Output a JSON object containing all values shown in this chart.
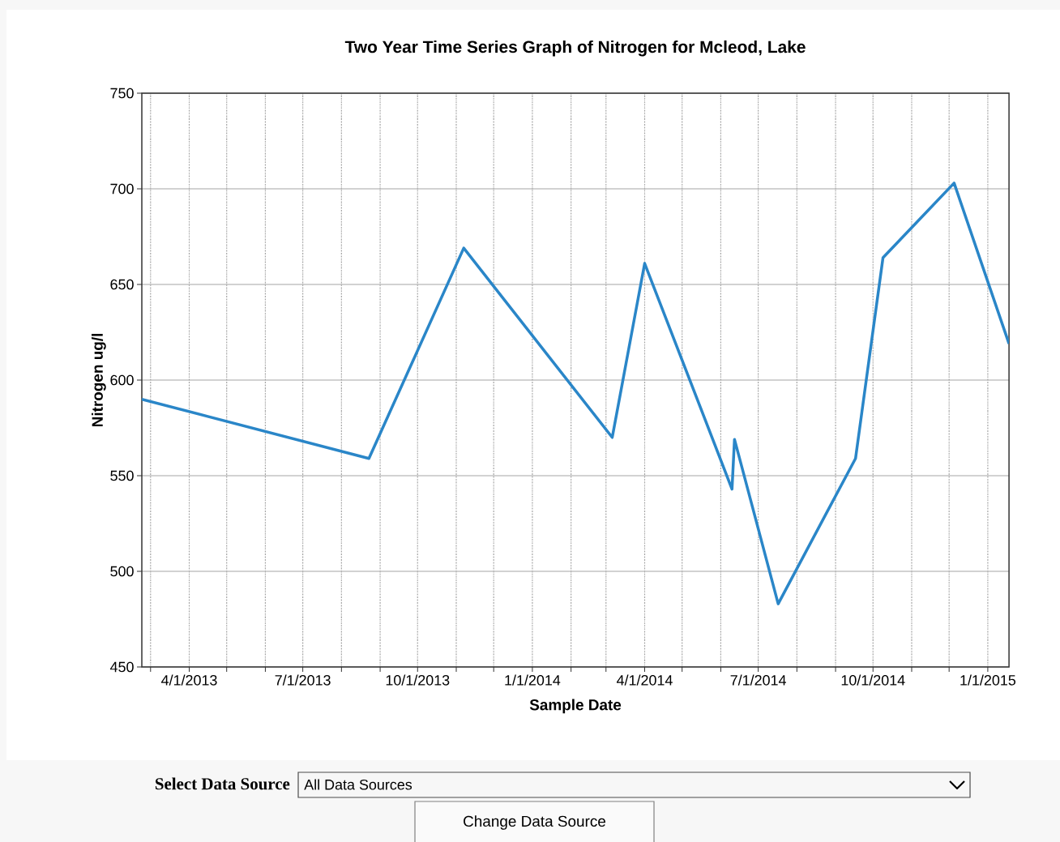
{
  "chart_data": {
    "type": "line",
    "title": "Two Year Time Series Graph of Nitrogen for Mcleod, Lake",
    "xlabel": "Sample Date",
    "ylabel": "Nitrogen ug/l",
    "x": [
      "2013-02-22",
      "2013-08-23",
      "2013-11-07",
      "2014-03-06",
      "2014-04-01",
      "2014-06-10",
      "2014-06-12",
      "2014-07-17",
      "2014-09-17",
      "2014-10-09",
      "2014-12-05",
      "2015-01-18"
    ],
    "series": [
      {
        "color": "#2a86c8",
        "values": [
          590,
          559,
          669,
          570,
          661,
          543,
          569,
          483,
          559,
          664,
          703,
          619
        ]
      }
    ],
    "xlim": [
      "2013-02-22",
      "2015-01-18"
    ],
    "xticks": [
      {
        "value": "2013-03-01",
        "label": null
      },
      {
        "value": "2013-04-01",
        "label": "4/1/2013"
      },
      {
        "value": "2013-05-01",
        "label": null
      },
      {
        "value": "2013-06-01",
        "label": null
      },
      {
        "value": "2013-07-01",
        "label": "7/1/2013"
      },
      {
        "value": "2013-08-01",
        "label": null
      },
      {
        "value": "2013-09-01",
        "label": null
      },
      {
        "value": "2013-10-01",
        "label": "10/1/2013"
      },
      {
        "value": "2013-11-01",
        "label": null
      },
      {
        "value": "2013-12-01",
        "label": null
      },
      {
        "value": "2014-01-01",
        "label": "1/1/2014"
      },
      {
        "value": "2014-02-01",
        "label": null
      },
      {
        "value": "2014-03-01",
        "label": null
      },
      {
        "value": "2014-04-01",
        "label": "4/1/2014"
      },
      {
        "value": "2014-05-01",
        "label": null
      },
      {
        "value": "2014-06-01",
        "label": null
      },
      {
        "value": "2014-07-01",
        "label": "7/1/2014"
      },
      {
        "value": "2014-08-01",
        "label": null
      },
      {
        "value": "2014-09-01",
        "label": null
      },
      {
        "value": "2014-10-01",
        "label": "10/1/2014"
      },
      {
        "value": "2014-11-01",
        "label": null
      },
      {
        "value": "2014-12-01",
        "label": null
      },
      {
        "value": "2015-01-01",
        "label": "1/1/2015"
      }
    ],
    "ylim": [
      450,
      750
    ],
    "yticks": [
      450,
      500,
      550,
      600,
      650,
      700,
      750
    ],
    "grid": true,
    "annotations": [
      "Select Data Source",
      "All Data Sources",
      "Change Data Source"
    ]
  }
}
